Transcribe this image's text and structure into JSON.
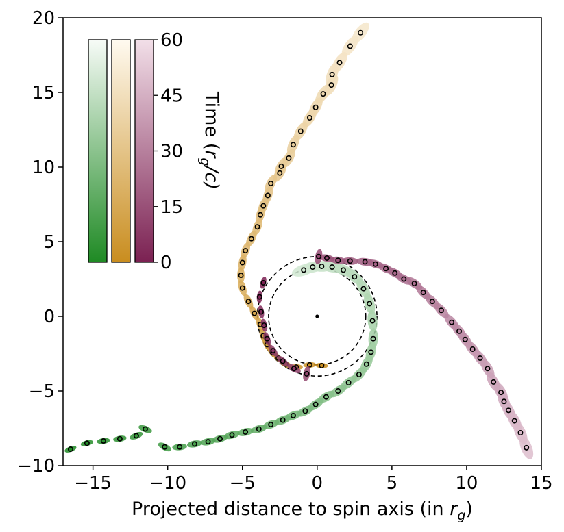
{
  "chart_data": {
    "type": "scatter",
    "title": "",
    "xlabel_main": "Projected distance to spin axis (in ",
    "xlabel_var": "r",
    "xlabel_sub": "g",
    "xlabel_end": ")",
    "ylabel": "",
    "xlim": [
      -17,
      15
    ],
    "ylim": [
      -10,
      20
    ],
    "x_ticks": [
      -15,
      -10,
      -5,
      0,
      5,
      10,
      15
    ],
    "x_tick_labels": [
      "−15",
      "−10",
      "−5",
      "0",
      "5",
      "10",
      "15"
    ],
    "y_ticks": [
      -10,
      -5,
      0,
      5,
      10,
      15,
      20
    ],
    "y_tick_labels": [
      "−10",
      "−5",
      "0",
      "5",
      "10",
      "15",
      "20"
    ],
    "grid": false,
    "colorbar": {
      "label_main": "Time (",
      "label_var": "r",
      "label_sub": "g",
      "label_end": "/c)",
      "ticks": [
        0,
        15,
        30,
        45,
        60
      ],
      "tick_labels": [
        "0",
        "15",
        "30",
        "45",
        "60"
      ],
      "range": [
        0,
        60
      ],
      "colormaps": [
        {
          "name": "green",
          "low": "#1f8a24",
          "high": "#f7fbf7"
        },
        {
          "name": "gold",
          "low": "#c98d1f",
          "high": "#fffaf0"
        },
        {
          "name": "purple",
          "low": "#7b2152",
          "high": "#f2dfe8"
        }
      ]
    },
    "center_point": [
      0,
      0
    ],
    "circles": [
      {
        "center": [
          0,
          0
        ],
        "radius": 3.25,
        "style": "dashed"
      },
      {
        "center": [
          0,
          0
        ],
        "radius": 4.0,
        "style": "dashed"
      }
    ],
    "series": [
      {
        "color_map": "green",
        "points": [
          [
            -16.5,
            -8.9
          ],
          [
            -15.4,
            -8.5
          ],
          [
            -14.3,
            -8.35
          ],
          [
            -13.2,
            -8.2
          ],
          [
            -12.1,
            -8.0
          ],
          [
            -11.5,
            -7.55
          ],
          [
            -10.2,
            -8.75
          ],
          [
            -9.2,
            -8.75
          ],
          [
            -8.2,
            -8.55
          ],
          [
            -7.3,
            -8.4
          ],
          [
            -6.5,
            -8.2
          ],
          [
            -5.7,
            -7.95
          ],
          [
            -4.8,
            -7.75
          ],
          [
            -3.9,
            -7.55
          ],
          [
            -3.1,
            -7.25
          ],
          [
            -2.3,
            -6.95
          ],
          [
            -1.6,
            -6.65
          ],
          [
            -0.8,
            -6.35
          ],
          [
            -0.1,
            -5.9
          ],
          [
            0.6,
            -5.4
          ],
          [
            1.4,
            -5.0
          ],
          [
            2.1,
            -4.45
          ],
          [
            2.8,
            -3.9
          ],
          [
            3.3,
            -3.2
          ],
          [
            3.6,
            -2.4
          ],
          [
            3.75,
            -1.5
          ],
          [
            3.7,
            -0.3
          ],
          [
            3.5,
            0.85
          ],
          [
            3.1,
            1.85
          ],
          [
            2.5,
            2.65
          ],
          [
            1.75,
            3.1
          ],
          [
            1.0,
            3.3
          ],
          [
            0.3,
            3.35
          ],
          [
            -0.3,
            3.3
          ],
          [
            -0.9,
            3.1
          ]
        ]
      },
      {
        "color_map": "gold",
        "points": [
          [
            0.3,
            -3.3
          ],
          [
            -0.5,
            -3.25
          ],
          [
            -1.4,
            -3.4
          ],
          [
            -2.1,
            -3.2
          ],
          [
            -2.6,
            -2.8
          ],
          [
            -3.0,
            -2.4
          ],
          [
            -3.35,
            -1.9
          ],
          [
            -3.6,
            -1.3
          ],
          [
            -3.8,
            -0.55
          ],
          [
            -4.2,
            0.2
          ],
          [
            -4.6,
            1.0
          ],
          [
            -5.0,
            1.9
          ],
          [
            -5.1,
            2.75
          ],
          [
            -5.0,
            3.6
          ],
          [
            -4.8,
            4.4
          ],
          [
            -4.4,
            5.2
          ],
          [
            -4.0,
            6.0
          ],
          [
            -3.8,
            6.8
          ],
          [
            -3.6,
            7.4
          ],
          [
            -3.3,
            8.1
          ],
          [
            -3.1,
            8.9
          ],
          [
            -2.5,
            9.6
          ],
          [
            -2.4,
            10.05
          ],
          [
            -1.9,
            10.6
          ],
          [
            -1.6,
            11.5
          ],
          [
            -1.1,
            12.4
          ],
          [
            -0.5,
            13.3
          ],
          [
            -0.1,
            14.0
          ],
          [
            0.4,
            14.9
          ],
          [
            0.95,
            15.5
          ],
          [
            1.0,
            16.2
          ],
          [
            1.5,
            17.0
          ],
          [
            2.2,
            18.1
          ],
          [
            2.9,
            19.0
          ]
        ]
      },
      {
        "color_map": "purple",
        "points": [
          [
            -3.6,
            2.25
          ],
          [
            -3.85,
            1.3
          ],
          [
            -3.75,
            0.3
          ],
          [
            -3.55,
            -0.6
          ],
          [
            -3.35,
            -1.5
          ],
          [
            -2.95,
            -2.3
          ],
          [
            -2.3,
            -3.0
          ],
          [
            -1.55,
            -3.5
          ],
          [
            -0.7,
            -3.85
          ],
          [
            0.1,
            4.0
          ],
          [
            0.65,
            3.9
          ],
          [
            1.4,
            3.75
          ],
          [
            2.2,
            3.7
          ],
          [
            3.2,
            3.65
          ],
          [
            3.9,
            3.5
          ],
          [
            4.6,
            3.2
          ],
          [
            5.2,
            2.9
          ],
          [
            5.8,
            2.5
          ],
          [
            6.5,
            2.2
          ],
          [
            7.1,
            1.6
          ],
          [
            7.7,
            1.0
          ],
          [
            8.3,
            0.4
          ],
          [
            9.0,
            -0.4
          ],
          [
            9.5,
            -1.0
          ],
          [
            9.9,
            -1.55
          ],
          [
            10.4,
            -2.2
          ],
          [
            10.9,
            -2.8
          ],
          [
            11.4,
            -3.5
          ],
          [
            11.8,
            -4.4
          ],
          [
            12.3,
            -5.1
          ],
          [
            12.5,
            -5.7
          ],
          [
            12.8,
            -6.3
          ],
          [
            13.2,
            -7.0
          ],
          [
            13.6,
            -7.8
          ],
          [
            14.0,
            -8.8
          ]
        ]
      }
    ]
  }
}
